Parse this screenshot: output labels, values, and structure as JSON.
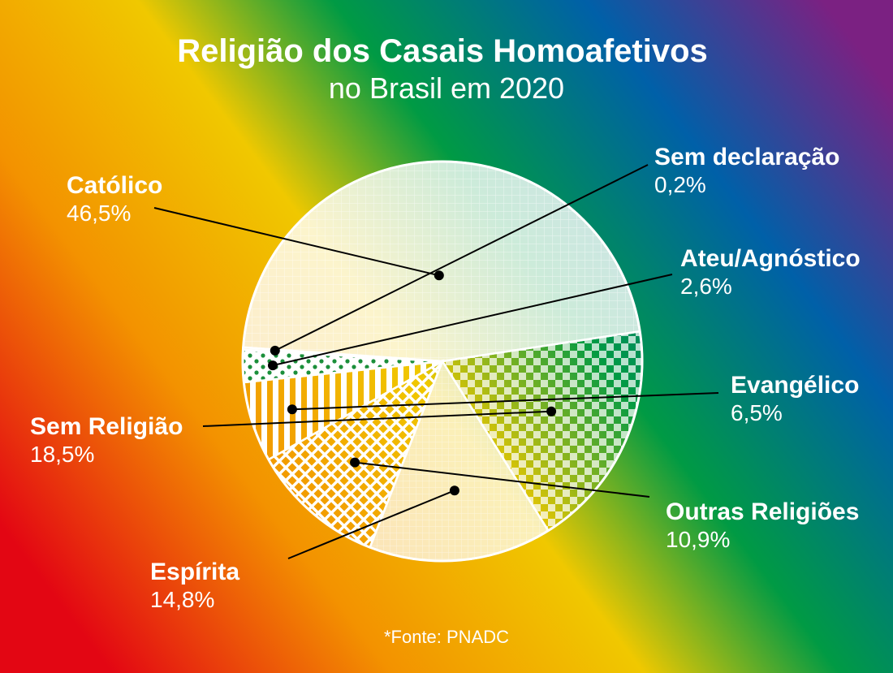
{
  "chart_data": {
    "type": "pie",
    "title": "Religião dos Casais Homoafetivos",
    "subtitle": "no Brasil em 2020",
    "source": "*Fonte: PNADC",
    "slices": [
      {
        "label": "Católico",
        "value": 46.5,
        "value_text": "46,5%",
        "pattern": "grid"
      },
      {
        "label": "Sem Religião",
        "value": 18.5,
        "value_text": "18,5%",
        "pattern": "checker"
      },
      {
        "label": "Espírita",
        "value": 14.8,
        "value_text": "14,8%",
        "pattern": "fine"
      },
      {
        "label": "Outras Religiões",
        "value": 10.9,
        "value_text": "10,9%",
        "pattern": "crosshatch"
      },
      {
        "label": "Evangélico",
        "value": 6.5,
        "value_text": "6,5%",
        "pattern": "stripes"
      },
      {
        "label": "Ateu/Agnóstico",
        "value": 2.6,
        "value_text": "2,6%",
        "pattern": "dots"
      },
      {
        "label": "Sem declaração",
        "value": 0.2,
        "value_text": "0,2%",
        "pattern": "grid"
      }
    ],
    "background": "rainbow-diagonal",
    "colors": {
      "red": "#e30613",
      "orange": "#f39200",
      "yellow": "#f0c800",
      "green": "#009a44",
      "blue": "#0060a8",
      "purple": "#7b2182",
      "slice_edge": "#ffffff",
      "leader_line": "#000000"
    }
  }
}
